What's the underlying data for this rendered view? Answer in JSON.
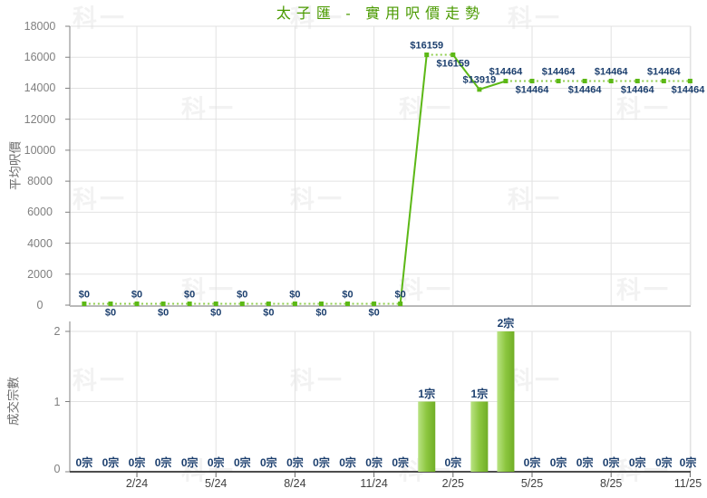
{
  "title": "太子匯 - 實用呎價走勢",
  "watermark_text": "科一",
  "colors": {
    "title": "#4a9a00",
    "line_solid": "#5cb816",
    "line_dashed": "#90ce4e",
    "marker": "#5cb816",
    "bar_light": "#b9e383",
    "bar_mid": "#8cc63f",
    "bar_dark": "#70ae26",
    "data_label": "#1c3f6e",
    "grid": "#e2e2e2",
    "axis_line": "#808080",
    "price_axis_line": "#b9b9b9",
    "count_baseline": "#4d4d4d",
    "tick": "#666666"
  },
  "chart_data": [
    {
      "type": "line",
      "name": "average-price-per-sqft-trend",
      "title": "太子匯 - 實用呎價走勢",
      "ylabel": "平均呎價",
      "ylim": [
        0,
        18000
      ],
      "ytick_step": 2000,
      "ytick_labels": [
        "18000",
        "16000",
        "14000",
        "12000",
        "10000",
        "8000",
        "6000",
        "4000",
        "2000",
        "0"
      ],
      "x": [
        "12/23",
        "1/24",
        "2/24",
        "3/24",
        "4/24",
        "5/24",
        "6/24",
        "7/24",
        "8/24",
        "9/24",
        "10/24",
        "11/24",
        "12/24",
        "1/25",
        "2/25",
        "3/25",
        "4/25",
        "5/25",
        "6/25",
        "7/25",
        "8/25",
        "9/25",
        "10/25",
        "11/25"
      ],
      "xtick_labels": [
        "2/24",
        "5/24",
        "8/24",
        "11/24",
        "2/25",
        "5/25",
        "8/25",
        "11/25"
      ],
      "xtick_month_indices": [
        2,
        5,
        8,
        11,
        14,
        17,
        20,
        23
      ],
      "values": [
        0,
        0,
        0,
        0,
        0,
        0,
        0,
        0,
        0,
        0,
        0,
        0,
        0,
        16159,
        16159,
        13919,
        14464,
        14464,
        14464,
        14464,
        14464,
        14464,
        14464,
        14464
      ],
      "point_labels": [
        "$0",
        "$0",
        "$0",
        "$0",
        "$0",
        "$0",
        "$0",
        "$0",
        "$0",
        "$0",
        "$0",
        "$0",
        "$0",
        "$16159",
        "$16159",
        "$13919",
        "$14464",
        "$14464",
        "$14464",
        "$14464",
        "$14464",
        "$14464",
        "$14464",
        "$14464"
      ],
      "label_sides": [
        "above",
        "below",
        "above",
        "below",
        "above",
        "below",
        "above",
        "below",
        "above",
        "below",
        "above",
        "below",
        "above",
        "above",
        "below",
        "above",
        "above",
        "below",
        "above",
        "below",
        "above",
        "below",
        "above",
        "below"
      ],
      "grid": true,
      "legend_position": "none"
    },
    {
      "type": "bar",
      "name": "transaction-count",
      "ylabel": "成交宗數",
      "ylim": [
        0,
        2
      ],
      "ytick_labels": [
        "2",
        "1",
        "0"
      ],
      "values": [
        0,
        0,
        0,
        0,
        0,
        0,
        0,
        0,
        0,
        0,
        0,
        0,
        0,
        1,
        0,
        1,
        2,
        0,
        0,
        0,
        0,
        0,
        0,
        0
      ],
      "bar_labels": [
        "0宗",
        "0宗",
        "0宗",
        "0宗",
        "0宗",
        "0宗",
        "0宗",
        "0宗",
        "0宗",
        "0宗",
        "0宗",
        "0宗",
        "0宗",
        "1宗",
        "0宗",
        "1宗",
        "2宗",
        "0宗",
        "0宗",
        "0宗",
        "0宗",
        "0宗",
        "0宗",
        "0宗"
      ],
      "grid": true,
      "legend_position": "none"
    }
  ]
}
